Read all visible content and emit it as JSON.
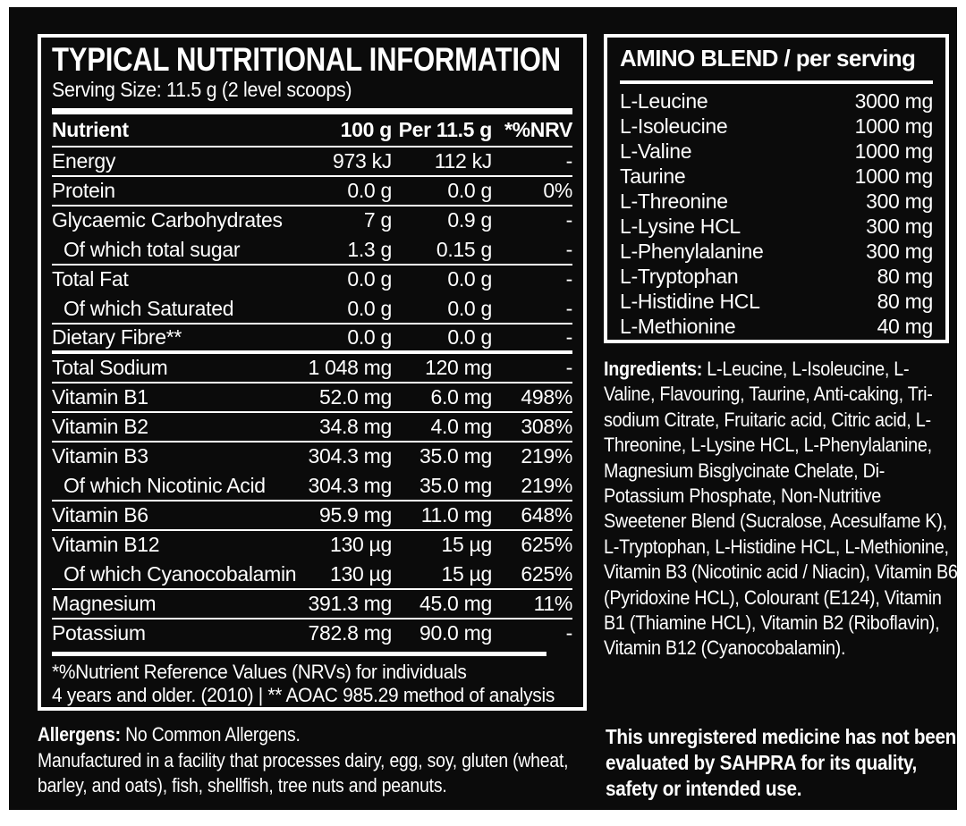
{
  "colors": {
    "label_background": "#0b0b0b",
    "border": "#ffffff",
    "text": "#ffffff",
    "page_background": "#ffffff"
  },
  "nutrition_panel": {
    "title": "TYPICAL NUTRITIONAL INFORMATION",
    "serving_size": "Serving Size: 11.5 g (2 level scoops)",
    "table": {
      "headers": [
        "Nutrient",
        "100 g",
        "Per 11.5 g",
        "*%NRV"
      ],
      "rows": [
        {
          "name": "Energy",
          "per100g": "973 kJ",
          "per_serving": "112 kJ",
          "nrv": "-",
          "indent": false,
          "divider": "thin"
        },
        {
          "name": "Protein",
          "per100g": "0.0 g",
          "per_serving": "0.0 g",
          "nrv": "0%",
          "indent": false,
          "divider": "thin"
        },
        {
          "name": "Glycaemic Carbohydrates",
          "per100g": "7 g",
          "per_serving": "0.9 g",
          "nrv": "-",
          "indent": false,
          "divider": "none"
        },
        {
          "name": "Of which total sugar",
          "per100g": "1.3 g",
          "per_serving": "0.15 g",
          "nrv": "-",
          "indent": true,
          "divider": "thin"
        },
        {
          "name": "Total Fat",
          "per100g": "0.0 g",
          "per_serving": "0.0 g",
          "nrv": "-",
          "indent": false,
          "divider": "none"
        },
        {
          "name": "Of which Saturated",
          "per100g": "0.0 g",
          "per_serving": "0.0 g",
          "nrv": "-",
          "indent": true,
          "divider": "thin"
        },
        {
          "name": "Dietary Fibre**",
          "per100g": "0.0 g",
          "per_serving": "0.0 g",
          "nrv": "-",
          "indent": false,
          "divider": "thick"
        },
        {
          "name": "Total Sodium",
          "per100g": "1 048 mg",
          "per_serving": "120 mg",
          "nrv": "-",
          "indent": false,
          "divider": "thin"
        },
        {
          "name": "Vitamin B1",
          "per100g": "52.0 mg",
          "per_serving": "6.0 mg",
          "nrv": "498%",
          "indent": false,
          "divider": "thin"
        },
        {
          "name": "Vitamin B2",
          "per100g": "34.8 mg",
          "per_serving": "4.0 mg",
          "nrv": "308%",
          "indent": false,
          "divider": "thin"
        },
        {
          "name": "Vitamin B3",
          "per100g": "304.3 mg",
          "per_serving": "35.0 mg",
          "nrv": "219%",
          "indent": false,
          "divider": "none"
        },
        {
          "name": "Of which Nicotinic Acid",
          "per100g": "304.3 mg",
          "per_serving": "35.0 mg",
          "nrv": "219%",
          "indent": true,
          "divider": "thin"
        },
        {
          "name": "Vitamin B6",
          "per100g": "95.9 mg",
          "per_serving": "11.0 mg",
          "nrv": "648%",
          "indent": false,
          "divider": "thin"
        },
        {
          "name": "Vitamin B12",
          "per100g": "130 µg",
          "per_serving": "15 µg",
          "nrv": "625%",
          "indent": false,
          "divider": "none"
        },
        {
          "name": "Of which Cyanocobalamin",
          "per100g": "130 µg",
          "per_serving": "15 µg",
          "nrv": "625%",
          "indent": true,
          "divider": "thin"
        },
        {
          "name": "Magnesium",
          "per100g": "391.3 mg",
          "per_serving": "45.0 mg",
          "nrv": "11%",
          "indent": false,
          "divider": "thin"
        },
        {
          "name": "Potassium",
          "per100g": "782.8 mg",
          "per_serving": "90.0 mg",
          "nrv": "-",
          "indent": false,
          "divider": "none"
        }
      ]
    },
    "footnote_line1": "*%Nutrient Reference Values (NRVs) for individuals",
    "footnote_line2": "4 years and older. (2010) | ** AOAC 985.29 method of analysis"
  },
  "amino_panel": {
    "title": "AMINO BLEND / per serving",
    "rows": [
      {
        "name": "L-Leucine",
        "amount": "3000 mg"
      },
      {
        "name": "L-Isoleucine",
        "amount": "1000 mg"
      },
      {
        "name": "L-Valine",
        "amount": "1000 mg"
      },
      {
        "name": "Taurine",
        "amount": "1000 mg"
      },
      {
        "name": "L-Threonine",
        "amount": "300 mg"
      },
      {
        "name": "L-Lysine HCL",
        "amount": "300 mg"
      },
      {
        "name": "L-Phenylalanine",
        "amount": "300 mg"
      },
      {
        "name": "L-Tryptophan",
        "amount": "80 mg"
      },
      {
        "name": "L-Histidine HCL",
        "amount": "80 mg"
      },
      {
        "name": "L-Methionine",
        "amount": "40 mg"
      }
    ]
  },
  "ingredients": {
    "label": "Ingredients:",
    "text": " L-Leucine, L-Isoleucine, L-Valine, Flavouring, Taurine, Anti-caking, Tri-sodium Citrate, Fruitaric acid, Citric acid, L-Threonine, L-Lysine HCL, L-Phenylalanine, Magnesium Bisglycinate Chelate, Di-Potassium Phosphate, Non-Nutritive Sweetener Blend (Sucralose, Acesulfame K), L-Tryptophan, L-Histidine HCL, L-Methionine, Vitamin B3 (Nicotinic acid / Niacin), Vitamin B6 (Pyridoxine HCL), Colourant (E124), Vitamin B1 (Thiamine HCL), Vitamin B2 (Riboflavin), Vitamin B12 (Cyanocobalamin)."
  },
  "allergens": {
    "label": "Allergens:",
    "value": " No Common Allergens.",
    "facility_text": "Manufactured in a facility that processes dairy, egg, soy, gluten (wheat, barley, and oats), fish, shellfish, tree nuts and peanuts."
  },
  "disclaimer": "This unregistered medicine has not been evaluated by SAHPRA for its quality, safety or intended use."
}
